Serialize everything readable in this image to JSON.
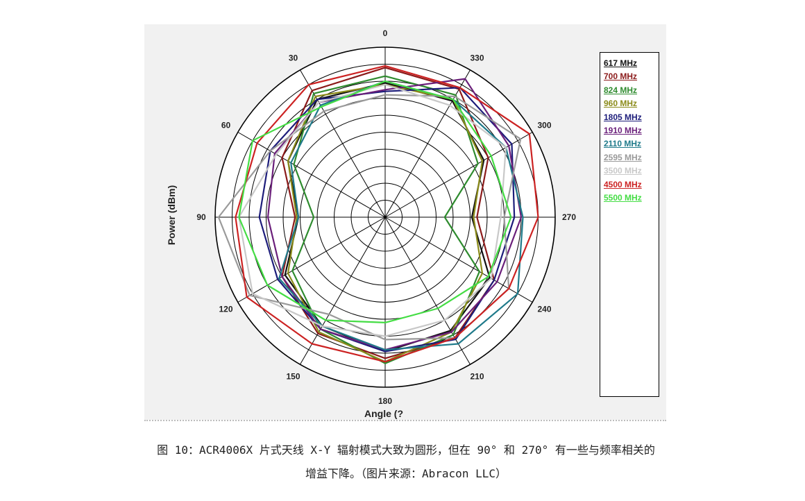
{
  "chart_data": {
    "type": "polar-line",
    "xlabel": "Angle (?",
    "ylabel": "Power (dBm)",
    "angle_tick_labels": [
      "0",
      "30",
      "60",
      "90",
      "120",
      "150",
      "180",
      "210",
      "240",
      "270",
      "300",
      "330"
    ],
    "angle_direction": "counter-clockwise, 0 at top",
    "radial_grid_rings": 10,
    "angles": [
      0,
      30,
      60,
      90,
      120,
      150,
      180,
      210,
      240,
      270,
      300,
      330
    ],
    "series": [
      {
        "name": "617 MHz",
        "color": "#111111",
        "values": [
          0.79,
          0.8,
          0.66,
          0.51,
          0.68,
          0.74,
          0.79,
          0.77,
          0.71,
          0.51,
          0.67,
          0.79
        ]
      },
      {
        "name": "700 MHz",
        "color": "#8b1a1a",
        "values": [
          0.88,
          0.86,
          0.7,
          0.53,
          0.7,
          0.79,
          0.83,
          0.82,
          0.74,
          0.54,
          0.7,
          0.87
        ]
      },
      {
        "name": "824 MHz",
        "color": "#2e8b2e",
        "values": [
          0.83,
          0.84,
          0.62,
          0.42,
          0.63,
          0.76,
          0.86,
          0.8,
          0.64,
          0.35,
          0.63,
          0.83
        ]
      },
      {
        "name": "960 MHz",
        "color": "#8b8b1a",
        "values": [
          0.78,
          0.82,
          0.66,
          0.52,
          0.66,
          0.78,
          0.85,
          0.78,
          0.66,
          0.52,
          0.66,
          0.8
        ]
      },
      {
        "name": "1805 MHz",
        "color": "#1c1c7a",
        "values": [
          0.74,
          0.8,
          0.78,
          0.74,
          0.73,
          0.76,
          0.79,
          0.83,
          0.74,
          0.76,
          0.86,
          0.88
        ]
      },
      {
        "name": "1910 MHz",
        "color": "#6a1f7a",
        "values": [
          0.75,
          0.78,
          0.75,
          0.69,
          0.7,
          0.76,
          0.78,
          0.78,
          0.76,
          0.8,
          0.84,
          0.94
        ]
      },
      {
        "name": "2110 MHz",
        "color": "#1f7a8a",
        "values": [
          0.8,
          0.76,
          0.64,
          0.51,
          0.72,
          0.74,
          0.78,
          0.86,
          0.9,
          0.81,
          0.82,
          0.8
        ]
      },
      {
        "name": "2595 MHz",
        "color": "#9a9a9a",
        "values": [
          0.72,
          0.72,
          0.78,
          0.98,
          0.92,
          0.66,
          0.72,
          0.82,
          0.84,
          0.7,
          0.92,
          0.82
        ]
      },
      {
        "name": "3500 MHz",
        "color": "#c8c8c8",
        "values": [
          0.78,
          0.78,
          0.74,
          0.86,
          0.9,
          0.74,
          0.7,
          0.7,
          0.72,
          0.68,
          0.82,
          0.76
        ]
      },
      {
        "name": "4500 MHz",
        "color": "#cc2222",
        "values": [
          0.89,
          0.9,
          0.87,
          0.88,
          0.94,
          0.86,
          0.85,
          0.82,
          0.84,
          0.9,
          0.98,
          0.88
        ]
      },
      {
        "name": "5500 MHz",
        "color": "#44dd44",
        "values": [
          0.8,
          0.75,
          0.9,
          0.86,
          0.8,
          0.7,
          0.62,
          0.62,
          0.7,
          0.74,
          0.72,
          0.8
        ]
      }
    ]
  },
  "legend": [
    {
      "label": "617 MHz",
      "color": "#111111"
    },
    {
      "label": "700 MHz",
      "color": "#8b1a1a"
    },
    {
      "label": "824 MHz",
      "color": "#2e8b2e"
    },
    {
      "label": "960 MHz",
      "color": "#8b8b1a"
    },
    {
      "label": "1805 MHz",
      "color": "#1c1c7a"
    },
    {
      "label": "1910 MHz",
      "color": "#6a1f7a"
    },
    {
      "label": "2110 MHz",
      "color": "#1f7a8a"
    },
    {
      "label": "2595 MHz",
      "color": "#9a9a9a"
    },
    {
      "label": "3500 MHz",
      "color": "#c8c8c8"
    },
    {
      "label": "4500 MHz",
      "color": "#cc2222"
    },
    {
      "label": "5500 MHz",
      "color": "#44dd44"
    }
  ],
  "caption": {
    "line1": "图 10：ACR4006X 片式天线 X-Y 辐射模式大致为圆形，但在 90° 和 270° 有一些与频率相关的",
    "line2": "增益下降。（图片来源：Abracon LLC）"
  }
}
